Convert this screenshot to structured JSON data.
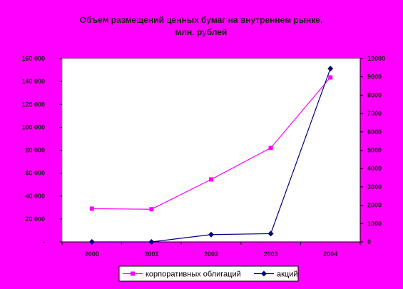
{
  "chart_data": {
    "type": "line",
    "title_lines": [
      "Объем размещений ценных бумаг на внутреннем рынке,",
      "млн. рублей"
    ],
    "categories": [
      "2000",
      "2001",
      "2002",
      "2003",
      "2004"
    ],
    "y_left": {
      "min": 0,
      "max": 160000,
      "step": 20000,
      "tick_labels": [
        "-",
        "20 000",
        "40 000",
        "60 000",
        "80 000",
        "100 000",
        "120 000",
        "140 000",
        "160 000"
      ]
    },
    "y_right": {
      "min": 0,
      "max": 10000,
      "step": 1000,
      "tick_labels": [
        "0",
        "1000",
        "2000",
        "3000",
        "4000",
        "5000",
        "6000",
        "7000",
        "8000",
        "9000",
        "10000"
      ]
    },
    "series": [
      {
        "name": "корпоративных облигаций",
        "axis": "left",
        "color": "#FF00FF",
        "marker": "square",
        "values": [
          29000,
          28500,
          54500,
          82000,
          143500
        ]
      },
      {
        "name": "акций",
        "axis": "right",
        "color": "#000080",
        "marker": "diamond",
        "values": [
          0,
          0,
          400,
          450,
          9450
        ]
      }
    ],
    "grid": false,
    "legend_position": "bottom"
  }
}
